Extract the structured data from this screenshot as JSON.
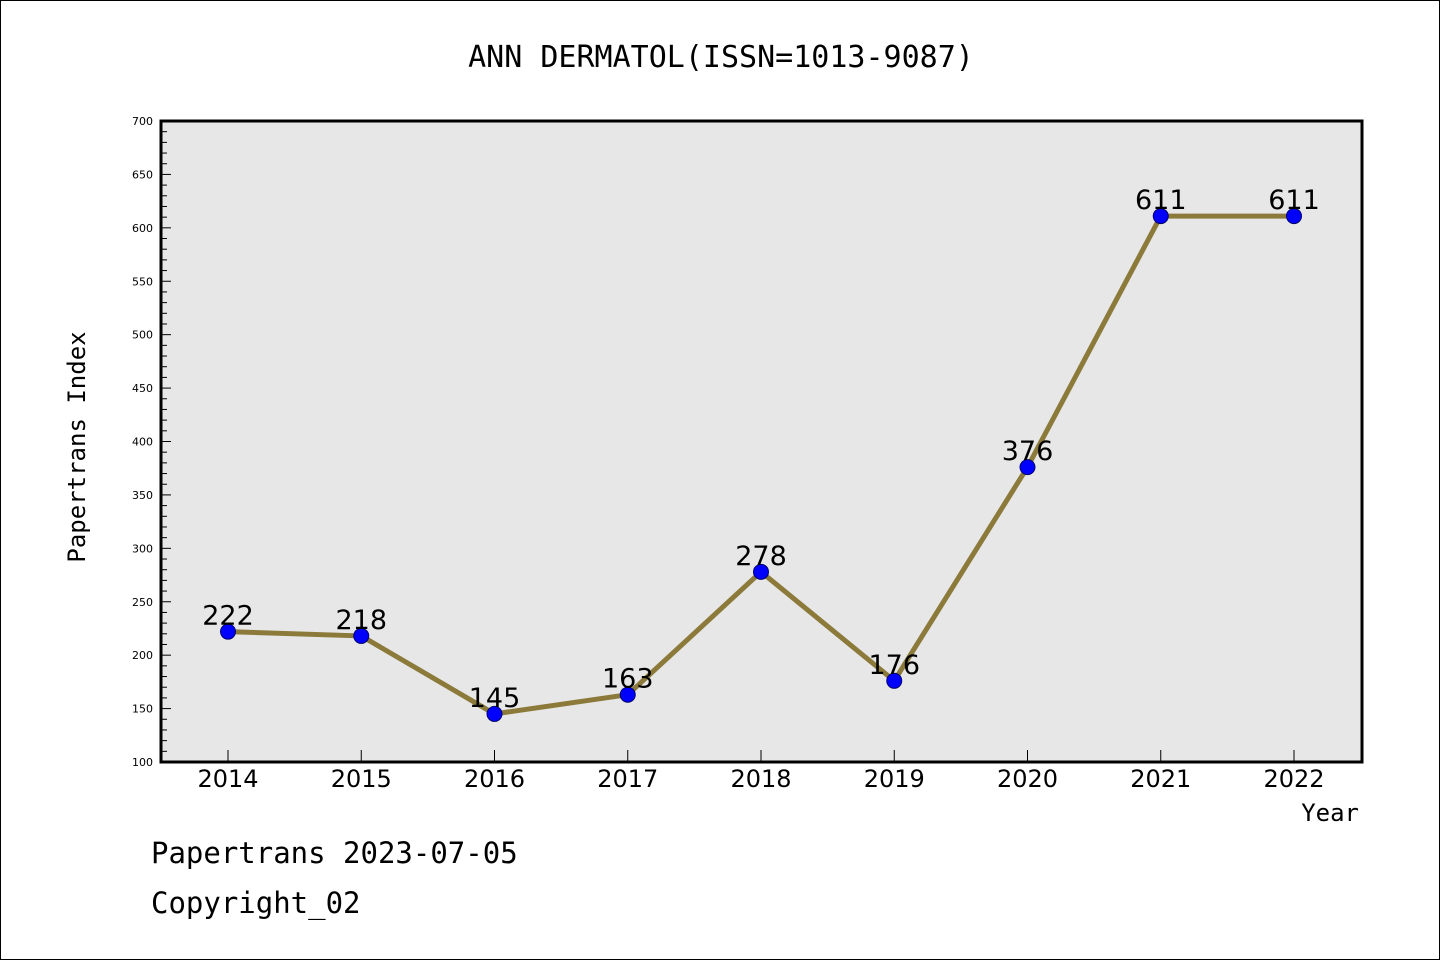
{
  "chart_data": {
    "type": "line",
    "title": "ANN DERMATOL(ISSN=1013-9087)",
    "xlabel": "Year",
    "ylabel": "Papertrans Index",
    "categories": [
      "2014",
      "2015",
      "2016",
      "2017",
      "2018",
      "2019",
      "2020",
      "2021",
      "2022"
    ],
    "series": [
      {
        "values": [
          222,
          218,
          145,
          163,
          278,
          176,
          376,
          611,
          611
        ],
        "data_labels": [
          "222",
          "218",
          "145",
          "163",
          "278",
          "176",
          "376",
          "611",
          "611"
        ]
      }
    ],
    "ylim": [
      100,
      700
    ],
    "yticks": [
      "100",
      "150",
      "200",
      "250",
      "300",
      "350",
      "400",
      "450",
      "500",
      "550",
      "600",
      "650",
      "700"
    ],
    "grid": false,
    "plot_background": "#e7e7e7",
    "line_color": "#8b7a3a",
    "marker_color": "#0000ff"
  },
  "footer": {
    "date_text": "Papertrans 2023-07-05",
    "copyright_text": "Copyright_02"
  }
}
